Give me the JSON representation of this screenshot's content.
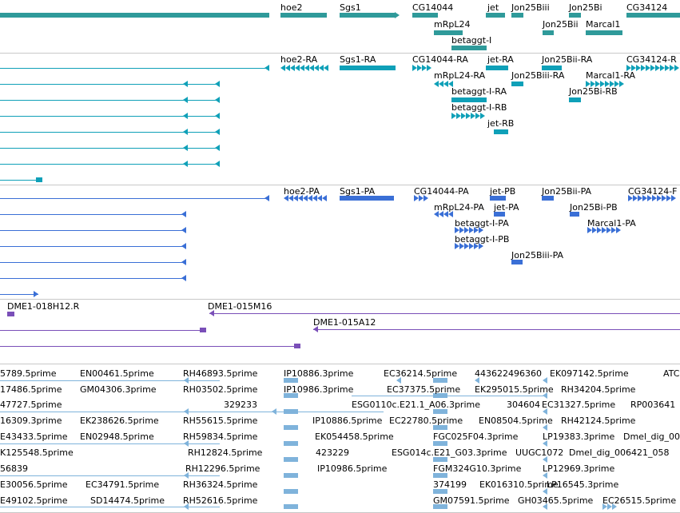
{
  "tracks": [
    {
      "name": "gene-track",
      "labels": [
        "hoe2",
        "Sgs1",
        "CG14044",
        "jet",
        "Jon25Biii",
        "Jon25Bi",
        "CG34124",
        "mRpL24",
        "Jon25Bii",
        "Marcal1",
        "betaggt-I"
      ]
    },
    {
      "name": "transcript-track-1",
      "labels": [
        "hoe2-RA",
        "Sgs1-RA",
        "CG14044-RA",
        "jet-RA",
        "Jon25Bii-RA",
        "CG34124-R",
        "mRpL24-RA",
        "Jon25Biii-RA",
        "Marcal1-RA",
        "betaggt-I-RA",
        "Jon25Bi-RB",
        "betaggt-I-RB",
        "jet-RB"
      ]
    },
    {
      "name": "transcript-track-2",
      "labels": [
        "hoe2-PA",
        "Sgs1-PA",
        "CG14044-PA",
        "jet-PB",
        "Jon25Bii-PA",
        "CG34124-F",
        "mRpL24-PA",
        "jet-PA",
        "Jon25Bi-PB",
        "betaggt-I-PA",
        "Marcal1-PA",
        "betaggt-I-PB",
        "Jon25Biii-PA"
      ]
    },
    {
      "name": "clone-track",
      "labels": [
        "DME1-018H12.R",
        "DME1-015M16",
        "DME1-015A12"
      ]
    },
    {
      "name": "est-track",
      "labels": [
        "5789.5prime",
        "EN00461.5prime",
        "RH46893.5prime",
        "IP10886.3prime",
        "EC36214.5prime",
        "443622496360",
        "EK097142.5prime",
        "ATC",
        "17486.5prime",
        "GM04306.3prime",
        "RH03502.5prime",
        "IP10986.3prime",
        "EC37375.5prime",
        "EK295015.5prime",
        "RH34204.5prime",
        "47727.5prime",
        "329233",
        "ESG0110c.E21.1_A06.3prime",
        "304604",
        "EC31327.5prime",
        "RP003641",
        "16309.3prime",
        "EK238626.5prime",
        "RH55615.5prime",
        "IP10886.5prime",
        "EC22780.5prime",
        "EN08504.5prime",
        "RH42124.5prime",
        "E43433.5prime",
        "EN02948.5prime",
        "RH59834.5prime",
        "EK054458.5prime",
        "FGC025F04.3prime",
        "LP19383.3prime",
        "Dmel_dig_00",
        "K125548.5prime",
        "RH12824.5prime",
        "423229",
        "ESG014c.E21_G03.3prime",
        "UUGC1072",
        "Dmel_dig_006421_058",
        "56839",
        "RH12296.5prime",
        "IP10986.5prime",
        "FGM324G10.3prime",
        "LP12969.3prime",
        "E30056.5prime",
        "EC34791.5prime",
        "RH36324.5prime",
        "374199",
        "EK016310.5prime",
        "LP16545.3prime",
        "E49102.5prime",
        "SD14474.5prime",
        "RH52616.5prime",
        "GM07591.5prime",
        "GH03465.5prime",
        "EC26515.5prime"
      ]
    }
  ],
  "colors": {
    "gene": "#2f9a9a",
    "transcript": "#0fa0b8",
    "protein": "#3a6fd6",
    "clone": "#7a4fb8",
    "est": "#7fb3db"
  }
}
